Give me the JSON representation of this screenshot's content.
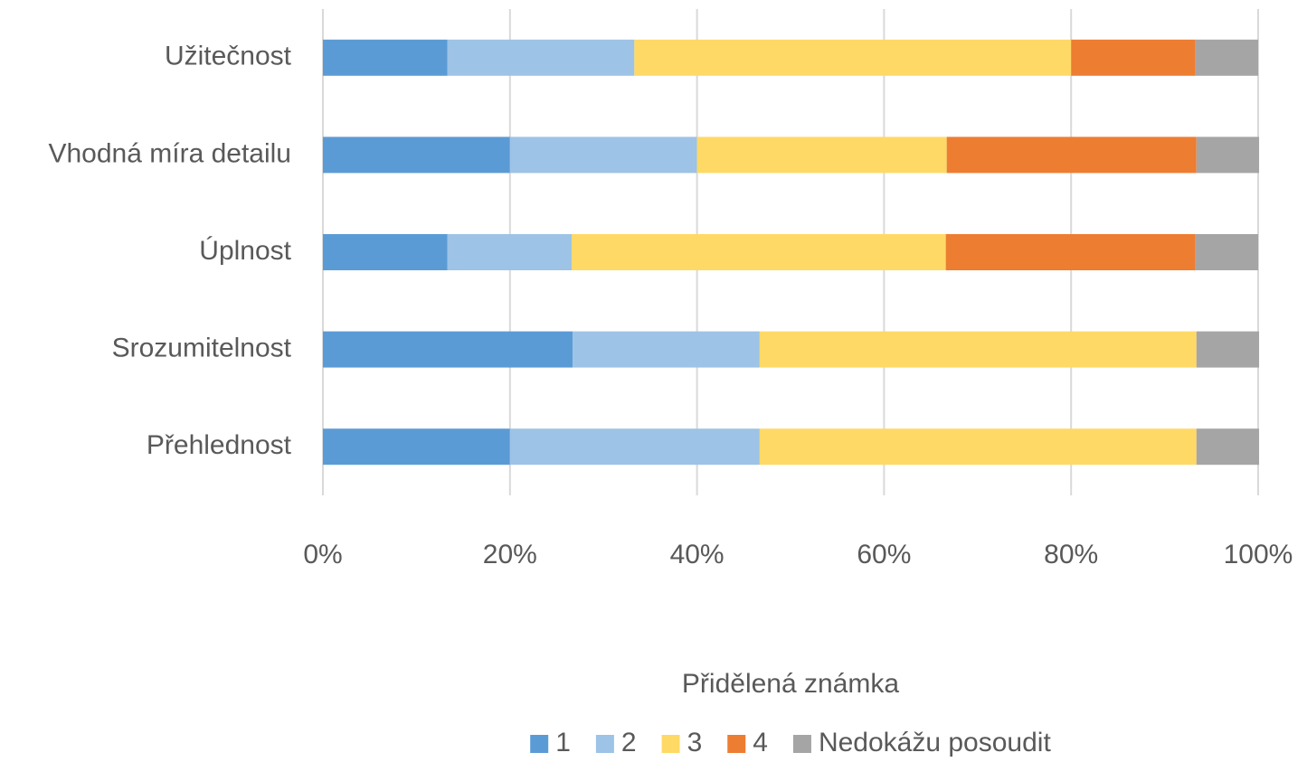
{
  "chart_data": {
    "type": "stacked-barh",
    "categories": [
      "Užitečnost",
      "Vhodná míra detailu",
      "Úplnost",
      "Srozumitelnost",
      "Přehlednost"
    ],
    "series": [
      {
        "name": "1",
        "color": "#5b9bd5",
        "values": [
          13.3,
          20,
          13.3,
          26.7,
          20
        ]
      },
      {
        "name": "2",
        "color": "#9dc3e6",
        "values": [
          20,
          20,
          13.3,
          20,
          26.7
        ]
      },
      {
        "name": "3",
        "color": "#ffd966",
        "values": [
          46.7,
          26.7,
          40,
          46.7,
          46.7
        ]
      },
      {
        "name": "4",
        "color": "#ed7d31",
        "values": [
          13.3,
          26.7,
          26.7,
          0,
          0
        ]
      },
      {
        "name": "Nedokážu posoudit",
        "color": "#a5a5a5",
        "values": [
          6.7,
          6.7,
          6.7,
          6.7,
          6.7
        ]
      }
    ],
    "xlim": [
      0,
      100
    ],
    "xticks": [
      {
        "value": 0,
        "label": "0%"
      },
      {
        "value": 20,
        "label": "20%"
      },
      {
        "value": 40,
        "label": "40%"
      },
      {
        "value": 60,
        "label": "60%"
      },
      {
        "value": 80,
        "label": "80%"
      },
      {
        "value": 100,
        "label": "100%"
      }
    ],
    "grid": true,
    "legend_title": "Přidělená známka",
    "legend": "bottom"
  }
}
